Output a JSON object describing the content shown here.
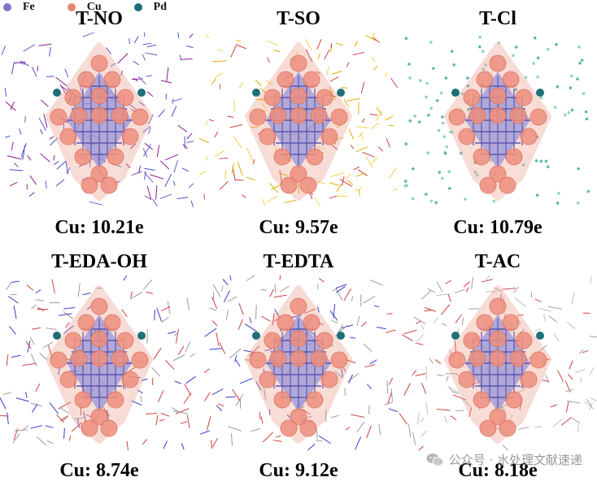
{
  "legend": [
    {
      "label": "Fe",
      "color": "#7b78c8"
    },
    {
      "label": "Cu",
      "color": "#e8876f"
    },
    {
      "label": "Pd",
      "color": "#1f6f78"
    }
  ],
  "panels": [
    {
      "title": "T-NO",
      "charge": "Cu: 10.21e",
      "ligand": "lines",
      "ligand_colors": [
        "#6a5acd",
        "#8b1a8b",
        "#4b4bcc"
      ]
    },
    {
      "title": "T-SO",
      "charge": "Cu: 9.57e",
      "ligand": "lines",
      "ligand_colors": [
        "#f2d24b",
        "#e0b000",
        "#d04040"
      ]
    },
    {
      "title": "T-Cl",
      "charge": "Cu: 10.79e",
      "ligand": "dots",
      "ligand_colors": [
        "#8fd3c1",
        "#5fb8a6"
      ]
    },
    {
      "title": "T-EDA-OH",
      "charge": "Cu: 8.74e",
      "ligand": "lines",
      "ligand_colors": [
        "#9a9a9a",
        "#3c3ccc",
        "#d04040"
      ]
    },
    {
      "title": "T-EDTA",
      "charge": "Cu: 9.12e",
      "ligand": "lines",
      "ligand_colors": [
        "#9a9a9a",
        "#3c3ccc",
        "#d04040"
      ]
    },
    {
      "title": "T-AC",
      "charge": "Cu: 8.18e",
      "ligand": "lines",
      "ligand_colors": [
        "#a0a0a0",
        "#d04040",
        "#c0c0c0"
      ]
    }
  ],
  "watermark": {
    "text": "公众号 · 水处理文献速递",
    "icon": "wechat-icon"
  }
}
